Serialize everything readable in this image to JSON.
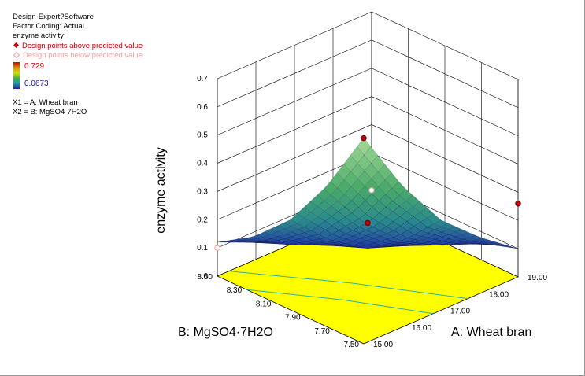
{
  "info": {
    "software": "Design-Expert?Software",
    "coding": "Factor Coding: Actual",
    "response": "enzyme activity",
    "legend_above": "Design points above predicted value",
    "legend_below": "Design points below predicted value",
    "range_max": "0.729",
    "range_min": "0.0673",
    "factor_x1": "X1 = A: Wheat bran",
    "factor_x2": "X2 = B: MgSO4·7H2O"
  },
  "colors": {
    "above": "#cc0000",
    "below": "#f0a0a0",
    "floor": "#ffff00",
    "surface_low": "#1a1a8c",
    "surface_high": "#8fd08a"
  },
  "chart_data": {
    "type": "surface3d",
    "zlabel": "enzyme activity",
    "xlabel": "A: Wheat bran",
    "ylabel": "B: MgSO4·7H2O",
    "xlim": [
      15.0,
      19.0
    ],
    "ylim": [
      7.5,
      8.5
    ],
    "zlim": [
      0,
      0.7
    ],
    "x_ticks": [
      "15.00",
      "16.00",
      "17.00",
      "18.00",
      "19.00"
    ],
    "y_ticks": [
      "7.50",
      "7.70",
      "7.90",
      "8.10",
      "8.30",
      "8.50"
    ],
    "z_ticks": [
      "0",
      "0.1",
      "0.2",
      "0.3",
      "0.4",
      "0.5",
      "0.6",
      "0.7"
    ],
    "surface_grid": {
      "x": [
        15.0,
        16.0,
        17.0,
        18.0,
        19.0
      ],
      "y": [
        7.5,
        7.75,
        8.0,
        8.25,
        8.5
      ],
      "z": [
        [
          0.73,
          0.5,
          0.32,
          0.2,
          0.1
        ],
        [
          0.5,
          0.32,
          0.19,
          0.11,
          0.06
        ],
        [
          0.32,
          0.19,
          0.1,
          0.05,
          0.04
        ],
        [
          0.2,
          0.11,
          0.05,
          0.04,
          0.05
        ],
        [
          0.12,
          0.06,
          0.04,
          0.05,
          0.09
        ]
      ]
    },
    "design_points": [
      {
        "x": 15.0,
        "y": 7.5,
        "z": 0.729,
        "status": "above"
      },
      {
        "x": 17.0,
        "y": 8.0,
        "z": 0.19,
        "status": "above"
      },
      {
        "x": 19.0,
        "y": 7.5,
        "z": 0.26,
        "status": "above"
      },
      {
        "x": 15.0,
        "y": 8.5,
        "z": 0.1,
        "status": "below"
      },
      {
        "x": 19.0,
        "y": 8.5,
        "z": 0.0673,
        "status": "below"
      }
    ]
  }
}
